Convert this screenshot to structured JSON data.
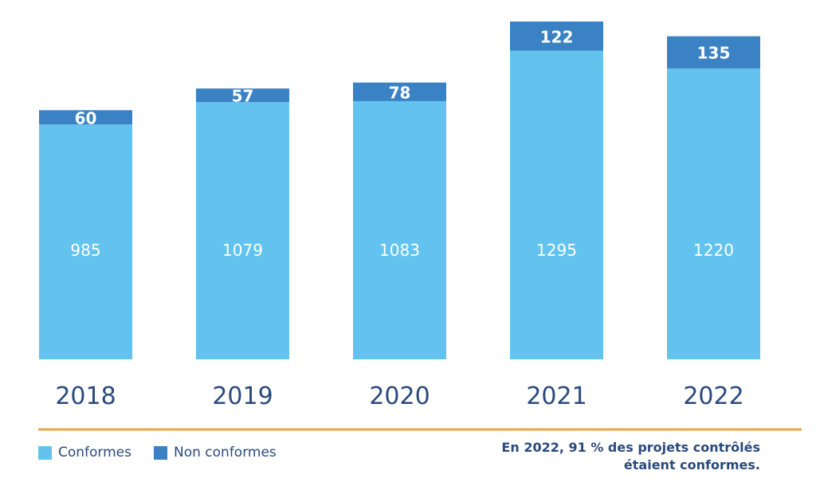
{
  "chart_data": {
    "type": "bar",
    "stacked": true,
    "categories": [
      "2018",
      "2019",
      "2020",
      "2021",
      "2022"
    ],
    "series": [
      {
        "name": "Conformes",
        "values": [
          985,
          1079,
          1083,
          1295,
          1220
        ],
        "color": "#63c3ee"
      },
      {
        "name": "Non conformes",
        "values": [
          60,
          57,
          78,
          122,
          135
        ],
        "color": "#3a82c4"
      }
    ],
    "ylim": [
      0,
      1417
    ],
    "grid": false,
    "legend_position": "bottom-left",
    "axis_color": "#e8a94a"
  },
  "note": "En 2022, 91 % des projets contrôlés étaient conformes."
}
